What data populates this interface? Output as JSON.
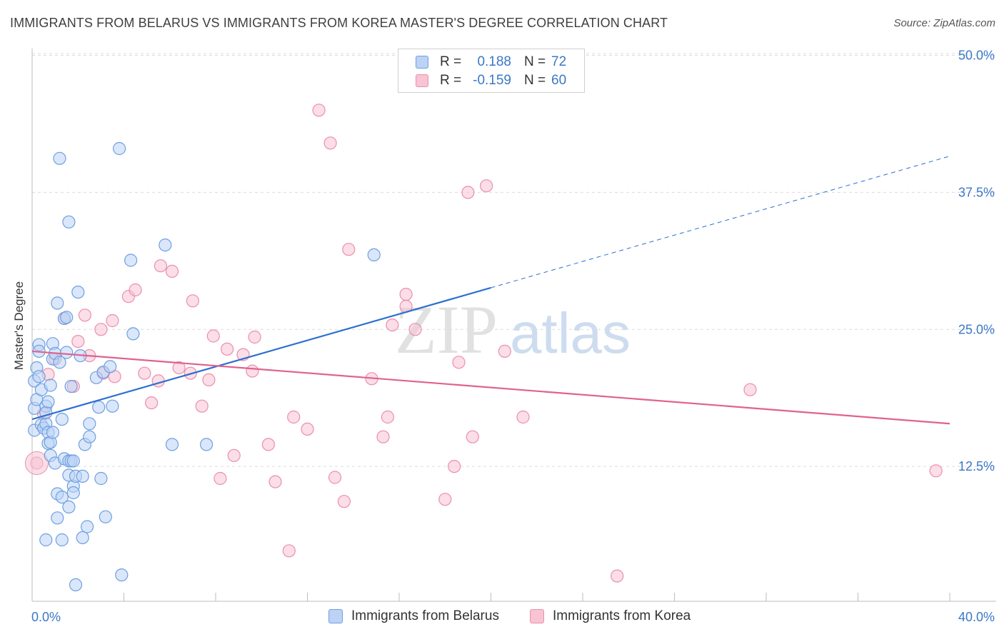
{
  "title": "IMMIGRANTS FROM BELARUS VS IMMIGRANTS FROM KOREA MASTER'S DEGREE CORRELATION CHART",
  "source": "Source: ZipAtlas.com",
  "watermark": {
    "zip": "ZIP",
    "atlas": "atlas"
  },
  "legend_top": [
    {
      "r_label": "R =",
      "r_value": "0.188",
      "n_label": "N =",
      "n_value": "72"
    },
    {
      "r_label": "R =",
      "r_value": "-0.159",
      "n_label": "N =",
      "n_value": "60"
    }
  ],
  "legend_bottom": [
    {
      "label": "Immigrants from Belarus"
    },
    {
      "label": "Immigrants from Korea"
    }
  ],
  "colors": {
    "blue_fill": "#bcd3f5",
    "blue_stroke": "#6e9fe0",
    "blue_line": "#2d6fcf",
    "pink_fill": "#f8c3d3",
    "pink_stroke": "#ea8fac",
    "pink_line": "#e0628e",
    "tick_label": "#3b78c7",
    "grid": "#dcdcdc"
  },
  "chart_data": {
    "type": "scatter",
    "title": "IMMIGRANTS FROM BELARUS VS IMMIGRANTS FROM KOREA MASTER'S DEGREE CORRELATION CHART",
    "ylabel": "Master's Degree",
    "xlim": [
      0,
      40
    ],
    "ylim": [
      0,
      52.5
    ],
    "x_tick_labels": [
      "0.0%",
      "40.0%"
    ],
    "y_ticks": [
      12.5,
      25.0,
      37.5,
      50.0
    ],
    "y_tick_labels": [
      "12.5%",
      "25.0%",
      "37.5%",
      "50.0%"
    ],
    "series": [
      {
        "name": "Immigrants from Belarus",
        "r": 0.188,
        "n": 72,
        "trend": {
          "x0": 0,
          "y0": 16.8,
          "x1": 20,
          "y1": 28.8,
          "dash_to_x": 40,
          "dash_to_y": 40.8
        },
        "points": [
          [
            0.1,
            17.8
          ],
          [
            0.1,
            20.3
          ],
          [
            0.1,
            15.8
          ],
          [
            0.2,
            18.6
          ],
          [
            0.2,
            21.5
          ],
          [
            0.3,
            23.6
          ],
          [
            0.3,
            20.7
          ],
          [
            0.3,
            23.0
          ],
          [
            0.4,
            16.3
          ],
          [
            0.4,
            19.5
          ],
          [
            0.5,
            16.0
          ],
          [
            0.6,
            18.0
          ],
          [
            0.6,
            16.4
          ],
          [
            0.6,
            17.4
          ],
          [
            0.7,
            18.4
          ],
          [
            0.7,
            15.6
          ],
          [
            0.7,
            14.6
          ],
          [
            0.8,
            14.7
          ],
          [
            0.8,
            19.9
          ],
          [
            0.8,
            13.5
          ],
          [
            0.9,
            15.6
          ],
          [
            0.9,
            23.7
          ],
          [
            0.9,
            22.3
          ],
          [
            1.0,
            22.8
          ],
          [
            1.0,
            12.8
          ],
          [
            1.1,
            10.0
          ],
          [
            1.1,
            7.8
          ],
          [
            1.1,
            27.4
          ],
          [
            1.2,
            22.0
          ],
          [
            1.2,
            40.6
          ],
          [
            1.3,
            9.7
          ],
          [
            1.3,
            16.8
          ],
          [
            1.3,
            5.8
          ],
          [
            1.4,
            26.0
          ],
          [
            1.4,
            13.2
          ],
          [
            1.5,
            22.9
          ],
          [
            1.5,
            26.1
          ],
          [
            1.6,
            11.7
          ],
          [
            1.6,
            8.8
          ],
          [
            1.6,
            34.8
          ],
          [
            1.6,
            13.0
          ],
          [
            1.7,
            19.8
          ],
          [
            1.7,
            13.0
          ],
          [
            1.8,
            13.0
          ],
          [
            1.8,
            10.7
          ],
          [
            1.8,
            10.1
          ],
          [
            1.9,
            11.6
          ],
          [
            2.0,
            28.4
          ],
          [
            1.9,
            1.7
          ],
          [
            2.1,
            22.6
          ],
          [
            2.2,
            11.6
          ],
          [
            2.2,
            6.0
          ],
          [
            2.3,
            14.5
          ],
          [
            2.4,
            7.0
          ],
          [
            2.5,
            16.4
          ],
          [
            2.5,
            15.2
          ],
          [
            2.8,
            20.6
          ],
          [
            2.9,
            17.9
          ],
          [
            3.0,
            11.4
          ],
          [
            3.1,
            21.1
          ],
          [
            3.2,
            7.9
          ],
          [
            3.4,
            21.6
          ],
          [
            3.5,
            18.0
          ],
          [
            3.8,
            41.5
          ],
          [
            3.9,
            2.6
          ],
          [
            4.3,
            31.3
          ],
          [
            4.4,
            24.6
          ],
          [
            5.8,
            32.7
          ],
          [
            6.1,
            14.5
          ],
          [
            7.6,
            14.5
          ],
          [
            14.9,
            31.8
          ],
          [
            0.6,
            5.8
          ]
        ]
      },
      {
        "name": "Immigrants from Korea",
        "r": -0.159,
        "n": 60,
        "trend": {
          "x0": 0,
          "y0": 23.0,
          "x1": 40,
          "y1": 16.4
        },
        "points": [
          [
            0.2,
            12.8
          ],
          [
            0.5,
            17.3
          ],
          [
            0.7,
            20.9
          ],
          [
            1.0,
            22.3
          ],
          [
            1.4,
            26.0
          ],
          [
            1.8,
            19.8
          ],
          [
            2.0,
            23.9
          ],
          [
            2.3,
            26.3
          ],
          [
            2.5,
            22.6
          ],
          [
            3.0,
            25.0
          ],
          [
            3.1,
            21.0
          ],
          [
            3.5,
            25.8
          ],
          [
            3.6,
            20.7
          ],
          [
            4.2,
            28.0
          ],
          [
            4.5,
            28.6
          ],
          [
            4.9,
            21.0
          ],
          [
            5.2,
            18.3
          ],
          [
            5.5,
            20.3
          ],
          [
            5.6,
            30.8
          ],
          [
            6.1,
            30.3
          ],
          [
            6.4,
            21.5
          ],
          [
            6.9,
            21.0
          ],
          [
            7.0,
            27.6
          ],
          [
            7.4,
            18.0
          ],
          [
            7.7,
            20.4
          ],
          [
            7.9,
            24.4
          ],
          [
            8.2,
            11.4
          ],
          [
            8.5,
            23.2
          ],
          [
            8.8,
            13.5
          ],
          [
            9.2,
            22.7
          ],
          [
            9.6,
            21.2
          ],
          [
            9.7,
            24.3
          ],
          [
            10.3,
            14.5
          ],
          [
            10.6,
            11.1
          ],
          [
            11.2,
            4.8
          ],
          [
            11.4,
            17.0
          ],
          [
            12.0,
            15.9
          ],
          [
            12.5,
            45.0
          ],
          [
            13.0,
            42.0
          ],
          [
            13.2,
            11.5
          ],
          [
            13.6,
            9.3
          ],
          [
            13.8,
            32.3
          ],
          [
            14.8,
            20.5
          ],
          [
            15.3,
            15.2
          ],
          [
            15.5,
            17.0
          ],
          [
            15.7,
            25.4
          ],
          [
            16.3,
            28.2
          ],
          [
            16.3,
            27.1
          ],
          [
            16.7,
            25.0
          ],
          [
            18.0,
            9.5
          ],
          [
            18.4,
            12.5
          ],
          [
            18.6,
            22.0
          ],
          [
            19.0,
            37.5
          ],
          [
            19.2,
            15.2
          ],
          [
            19.8,
            38.1
          ],
          [
            20.6,
            23.0
          ],
          [
            21.4,
            17.0
          ],
          [
            25.5,
            2.5
          ],
          [
            31.3,
            19.5
          ],
          [
            39.4,
            12.1
          ]
        ]
      }
    ]
  }
}
